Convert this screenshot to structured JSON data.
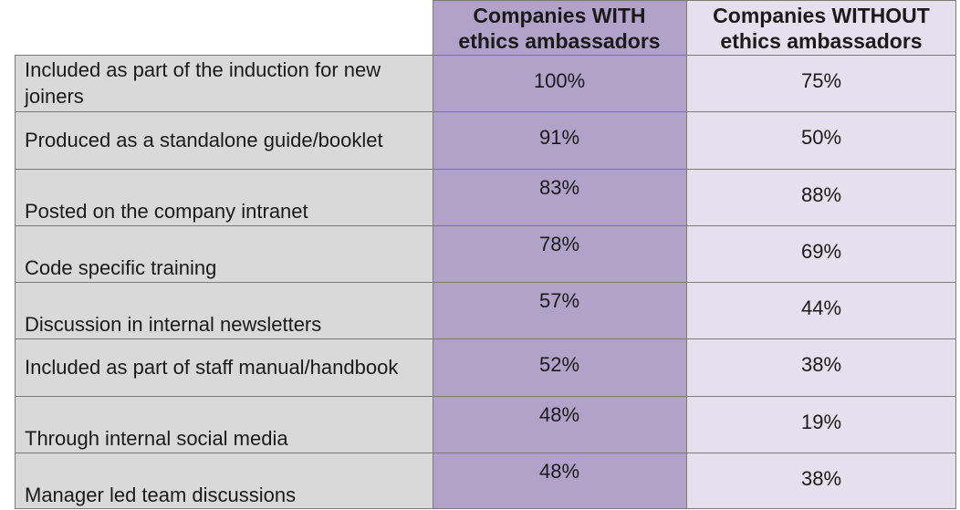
{
  "chart_data": {
    "type": "table",
    "columns": [
      "Companies WITH\nethics ambassadors",
      "Companies WITHOUT\nethics ambassadors"
    ],
    "rows": [
      {
        "label": "Included as part of the induction for new joiners",
        "with": "100%",
        "without": "75%"
      },
      {
        "label": "Produced as a standalone guide/booklet",
        "with": "91%",
        "without": "50%"
      },
      {
        "label": "Posted on the company intranet",
        "with": "83%",
        "without": "88%"
      },
      {
        "label": "Code specific training",
        "with": "78%",
        "without": "69%"
      },
      {
        "label": "Discussion in internal newsletters",
        "with": "57%",
        "without": "44%"
      },
      {
        "label": "Included as part of staff manual/handbook",
        "with": "52%",
        "without": "38%"
      },
      {
        "label": "Through internal social media",
        "with": "48%",
        "without": "19%"
      },
      {
        "label": "Manager led team discussions",
        "with": "48%",
        "without": "38%"
      }
    ]
  },
  "colors": {
    "with_column": "#b2a2c9",
    "without_column": "#e5e0ed",
    "label_column": "#d9d9d9",
    "grid": "#7a7a7a"
  }
}
